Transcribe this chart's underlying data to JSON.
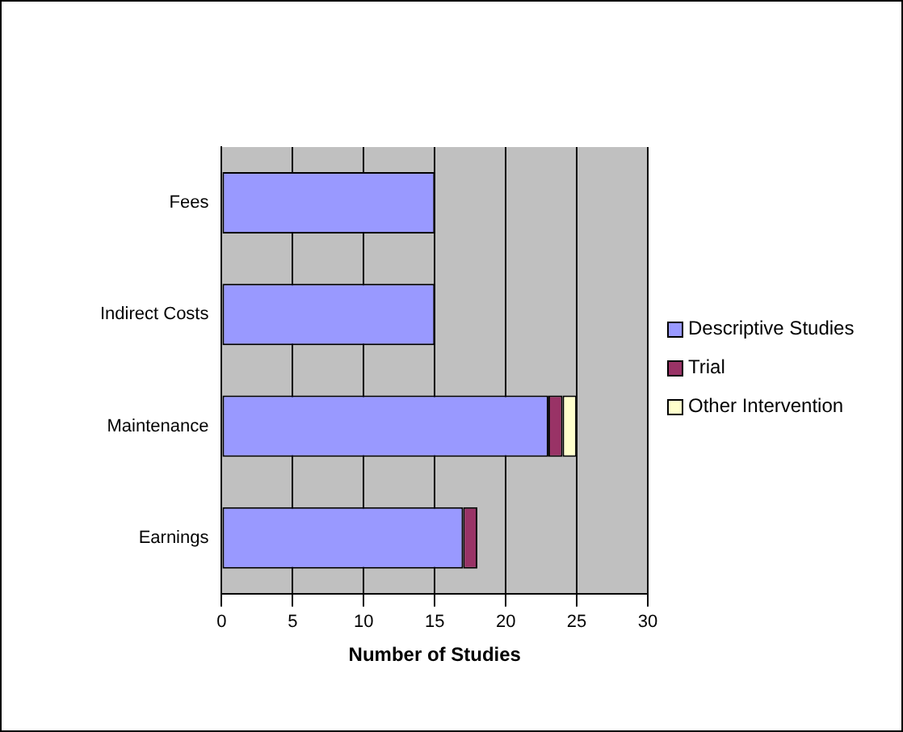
{
  "chart_data": {
    "type": "bar",
    "orientation": "horizontal",
    "stacked": true,
    "xlabel": "Number of Studies",
    "categories": [
      "Fees",
      "Indirect Costs",
      "Maintenance",
      "Earnings"
    ],
    "series": [
      {
        "name": "Descriptive Studies",
        "color": "#9999ff",
        "values": [
          15,
          15,
          23,
          17
        ]
      },
      {
        "name": "Trial",
        "color": "#993366",
        "values": [
          null,
          null,
          1,
          1
        ]
      },
      {
        "name": "Other Intervention",
        "color": "#ffffcc",
        "values": [
          null,
          null,
          1,
          null
        ]
      }
    ],
    "xlim": [
      0,
      30
    ],
    "xticks": [
      0,
      5,
      10,
      15,
      20,
      25,
      30
    ],
    "grid": "x",
    "legend": "right"
  }
}
